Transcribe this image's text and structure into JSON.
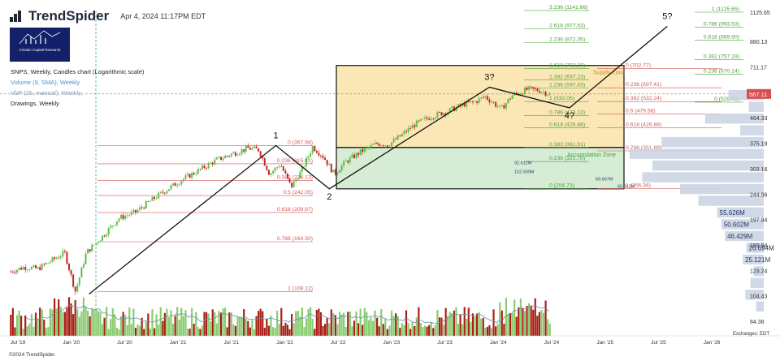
{
  "header": {
    "brand": "TrendSpider",
    "timestamp": "Apr 4, 2024 11:17PM EDT"
  },
  "logo": {
    "text": "Cristian Capital Research"
  },
  "legend": {
    "title": "SNPS, Weekly, Candles chart (Logarithmic scale)",
    "volume": "Volume (9, SMA), Weekly",
    "vbp": "VbP (25, manual), Weekly,",
    "drawings": "Drawings, Weekly"
  },
  "footer": {
    "copyright": "©2024 TrendSpider",
    "exchange": "Exchanges: EDT"
  },
  "colors": {
    "up": "#5ebb4a",
    "down": "#c2241c",
    "vol_up": "#88cc6f",
    "vol_down": "#a81d15",
    "fib_red": "#cf5a55",
    "fib_green": "#4aa03a",
    "supply_fill": "#fbe7b6",
    "accum_fill": "#d6ecd5",
    "vbp": "#c9d2e3",
    "price_tag": "#d94f4f",
    "dashed": "#4aa0b3"
  },
  "chart_data": {
    "type": "candlestick",
    "scale": "log",
    "ylim": [
      80,
      1300
    ],
    "y_ticks": [
      "1125.65",
      "880.13",
      "711.17",
      "567.11",
      "464.33",
      "375.19",
      "303.16",
      "244.96",
      "197.94",
      "159.94",
      "129.24",
      "104.43",
      "84.38"
    ],
    "x_ticks": [
      "Jul '19",
      "Jan '20",
      "Jul '20",
      "Jan '21",
      "Jul '21",
      "Jan '22",
      "Jul '22",
      "Jan '23",
      "Jul '23",
      "Jan '24",
      "Jul '24",
      "Jan '25",
      "Jul '25",
      "Jan '26"
    ],
    "last_price": "567.11",
    "price_path": [
      [
        0,
        128
      ],
      [
        0.025,
        133
      ],
      [
        0.05,
        131
      ],
      [
        0.08,
        142
      ],
      [
        0.1,
        150
      ],
      [
        0.12,
        108
      ],
      [
        0.14,
        150
      ],
      [
        0.17,
        172
      ],
      [
        0.2,
        200
      ],
      [
        0.23,
        210
      ],
      [
        0.26,
        232
      ],
      [
        0.29,
        255
      ],
      [
        0.32,
        278
      ],
      [
        0.35,
        300
      ],
      [
        0.38,
        325
      ],
      [
        0.41,
        343
      ],
      [
        0.44,
        360
      ],
      [
        0.46,
        355
      ],
      [
        0.48,
        290
      ],
      [
        0.5,
        315
      ],
      [
        0.52,
        260
      ],
      [
        0.54,
        300
      ],
      [
        0.56,
        365
      ],
      [
        0.58,
        335
      ],
      [
        0.6,
        290
      ],
      [
        0.62,
        320
      ],
      [
        0.65,
        350
      ],
      [
        0.68,
        375
      ],
      [
        0.7,
        370
      ],
      [
        0.72,
        395
      ],
      [
        0.75,
        440
      ],
      [
        0.78,
        470
      ],
      [
        0.81,
        490
      ],
      [
        0.84,
        520
      ],
      [
        0.86,
        530
      ],
      [
        0.88,
        555
      ],
      [
        0.91,
        500
      ],
      [
        0.93,
        560
      ],
      [
        0.96,
        590
      ],
      [
        0.98,
        585
      ],
      [
        1,
        567
      ]
    ],
    "volume_profile": [
      {
        "value": 42,
        "label": ""
      },
      {
        "value": 18,
        "label": ""
      },
      {
        "value": 70,
        "label": ""
      },
      {
        "value": 28,
        "label": ""
      },
      {
        "value": 122,
        "label": ""
      },
      {
        "value": 160,
        "label": ""
      },
      {
        "value": 133,
        "label": ""
      },
      {
        "value": 145,
        "label": ""
      },
      {
        "value": 100,
        "label": ""
      },
      {
        "value": 78,
        "label": ""
      },
      {
        "value": 55.6,
        "label": "55.626M"
      },
      {
        "value": 50.6,
        "label": "50.602M"
      },
      {
        "value": 46.4,
        "label": "46.429M"
      },
      {
        "value": 20.7,
        "label": "20.694M"
      },
      {
        "value": 25.1,
        "label": "25.121M"
      },
      {
        "value": 12,
        "label": ""
      },
      {
        "value": 16,
        "label": ""
      },
      {
        "value": 22,
        "label": ""
      },
      {
        "value": 9,
        "label": ""
      }
    ],
    "inner_vbp_labels": [
      "102.509M",
      "69.667M",
      "60.812M",
      "92.612M"
    ],
    "fib_main": [
      {
        "label": "1 (108.12)",
        "value": 108.12
      },
      {
        "label": "0.786 (164.30)",
        "value": 164.3
      },
      {
        "label": "0.618 (209.97)",
        "value": 209.97
      },
      {
        "label": "0.5 (242.05)",
        "value": 242.05
      },
      {
        "label": "0.382 (274.13)",
        "value": 274.13
      },
      {
        "label": "0.236 (315.81)",
        "value": 315.81
      },
      {
        "label": "0 (367.98)",
        "value": 367.98
      }
    ],
    "fib_ext_mid": [
      {
        "label": "3.236 (1141.86)",
        "value": 1141.86
      },
      {
        "label": "2.618 (977.53)",
        "value": 977.53
      },
      {
        "label": "2.236 (872.35)",
        "value": 872.35
      },
      {
        "label": "1.618 (702.20)",
        "value": 702.2
      },
      {
        "label": "1.382 (637.23)",
        "value": 637.23
      },
      {
        "label": "1.236 (597.03)",
        "value": 597.03
      },
      {
        "label": "1 (532.05)",
        "value": 532.05
      },
      {
        "label": "0.786 (473.13)",
        "value": 473.13
      },
      {
        "label": "0.618 (426.88)",
        "value": 426.88
      },
      {
        "label": "0.382 (361.91)",
        "value": 361.91
      },
      {
        "label": "0.236 (321.70)",
        "value": 321.7
      },
      {
        "label": "0 (256.73)",
        "value": 256.73
      }
    ],
    "fib_retrace_right": [
      {
        "label": "0 (702.77)",
        "value": 702.77
      },
      {
        "label": "0.236 (597.41)",
        "value": 597.41
      },
      {
        "label": "0.382 (532.24)",
        "value": 532.24
      },
      {
        "label": "0.5 (479.56)",
        "value": 479.56
      },
      {
        "label": "0.618 (426.88)",
        "value": 426.88
      },
      {
        "label": "0.786 (351.89)",
        "value": 351.89
      },
      {
        "label": "1 (256.36)",
        "value": 256.36
      }
    ],
    "fib_ext_right": [
      {
        "label": "1 (1125.65)",
        "value": 1125.65
      },
      {
        "label": "0.786 (993.53)",
        "value": 993.53
      },
      {
        "label": "0.618 (889.90)",
        "value": 889.9
      },
      {
        "label": "0.382 (757.19)",
        "value": 757.19
      },
      {
        "label": "0.236 (670.14)",
        "value": 670.14
      },
      {
        "label": "0 (529.43)",
        "value": 529.43
      }
    ],
    "zones": [
      {
        "label": "Supply Zone",
        "top": 720,
        "bottom": 362
      },
      {
        "label": "Accumulation Zone",
        "top": 362,
        "bottom": 256
      }
    ],
    "wave_labels": [
      "1",
      "2",
      "3?",
      "4?",
      "5?"
    ],
    "wave_points": [
      {
        "date": "2020-03",
        "value": 106
      },
      {
        "date": "2021-12",
        "value": 368
      },
      {
        "date": "2022-06",
        "value": 256
      },
      {
        "date": "2023-12",
        "value": 600
      },
      {
        "date": "2024-09",
        "value": 505
      },
      {
        "date": "2025-08",
        "value": 1000
      }
    ]
  }
}
